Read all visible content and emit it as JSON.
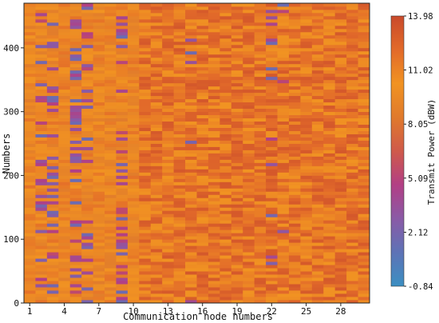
{
  "chart_data": {
    "type": "heatmap",
    "title": "",
    "xlabel": "Communication node numbers",
    "ylabel": "Numbers",
    "x_ticks": [
      1,
      4,
      7,
      10,
      13,
      16,
      19,
      22,
      25,
      28
    ],
    "y_ticks": [
      0,
      100,
      200,
      300,
      400
    ],
    "x_range": [
      1,
      30
    ],
    "y_range": [
      0,
      470
    ],
    "colorbar": {
      "label": "Transmit Power (dBW)",
      "min": -0.84,
      "max": 13.98,
      "ticks": [
        "13.98",
        "11.02",
        "8.05",
        "5.09",
        "2.12",
        "-0.84"
      ],
      "colors": [
        "#3b8fc2",
        "#5e73b6",
        "#8a5aa6",
        "#b23f85",
        "#cf5a4a",
        "#e07a2c",
        "#f19322",
        "#e26a2a",
        "#c94a2b"
      ]
    },
    "value_pattern": {
      "typical_range_dBW": [
        7,
        13.98
      ],
      "low_values_near_nodes": [
        2,
        3,
        5,
        6,
        9,
        15,
        22,
        23
      ],
      "description_note": ""
    }
  }
}
